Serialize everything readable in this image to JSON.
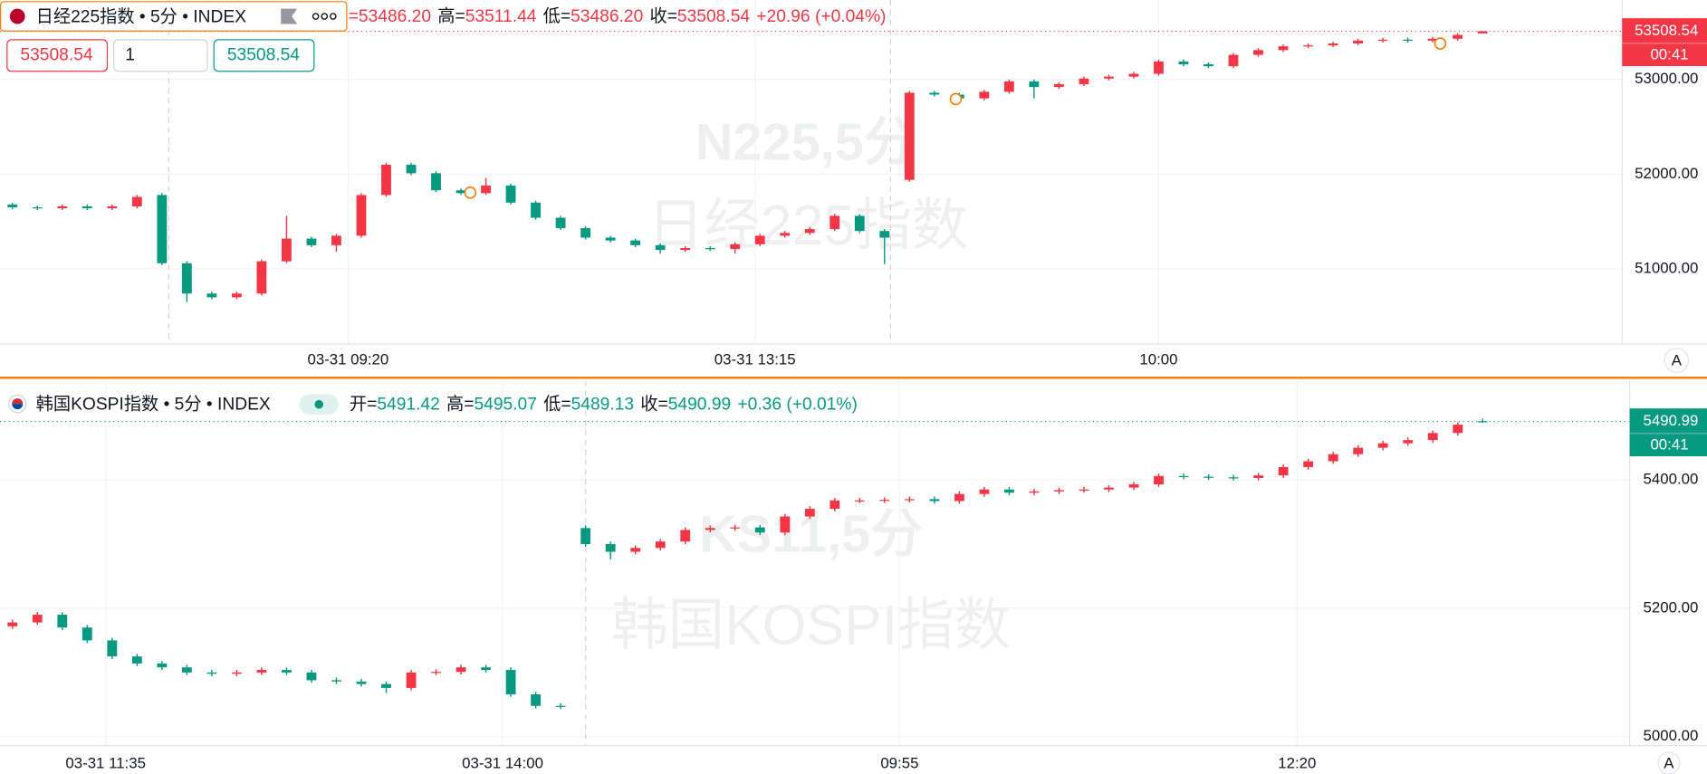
{
  "chart_data": [
    {
      "type": "candlestick",
      "symbol": "日经225指数 • 5分 • INDEX",
      "legend_items": [
        {
          "value": "=53486.20"
        },
        {
          "label": "高=",
          "value": "53511.44"
        },
        {
          "label": "低=",
          "value": "53486.20"
        },
        {
          "label": "收=",
          "value": "53508.54"
        }
      ],
      "change": "+20.96 (+0.04%)",
      "legend_color": "#f23645",
      "inputs": [
        "53508.54",
        "1",
        "53508.54"
      ],
      "watermark": [
        "N225,5分",
        "日经225指数"
      ],
      "last_price_label": "53508.54",
      "countdown": "00:41",
      "up_color": "#f23645",
      "down_color": "#089981",
      "xlim": [
        -0.5,
        64.6
      ],
      "xticks": [
        {
          "value": 13.47,
          "label": "03-31 09:20"
        },
        {
          "value": 29.8,
          "label": "03-31 13:15"
        },
        {
          "value": 46,
          "label": "10:00"
        }
      ],
      "ylim": [
        50207,
        53839
      ],
      "yticks": [
        {
          "value": 51000,
          "label": "51000.00"
        },
        {
          "value": 52000,
          "label": "52000.00"
        },
        {
          "value": 53000,
          "label": "53000.00"
        }
      ],
      "open": [
        51680,
        51650,
        51640,
        51660,
        51640,
        51660,
        51780,
        51060,
        50740,
        50700,
        50740,
        51080,
        51320,
        51250,
        51350,
        51780,
        52100,
        52010,
        51830,
        51800,
        51880,
        51700,
        51540,
        51430,
        51330,
        51300,
        51250,
        51200,
        51220,
        51210,
        51260,
        51350,
        51380,
        51420,
        51560,
        51400,
        51940,
        52860,
        52840,
        52800,
        52870,
        52980,
        52920,
        52950,
        53010,
        53030,
        53060,
        53190,
        53160,
        53140,
        53260,
        53310,
        53350,
        53360,
        53380,
        53410,
        53420,
        53410,
        53430,
        53486.2
      ],
      "high": [
        51700,
        51670,
        51680,
        51680,
        51680,
        51780,
        51800,
        51080,
        50760,
        50760,
        51100,
        51560,
        51340,
        51370,
        51800,
        52120,
        52120,
        52030,
        51850,
        51960,
        51900,
        51720,
        51560,
        51450,
        51350,
        51320,
        51270,
        51240,
        51240,
        51280,
        51370,
        51400,
        51440,
        51580,
        51580,
        51420,
        52880,
        52880,
        52860,
        52890,
        53000,
        53000,
        52970,
        53030,
        53050,
        53080,
        53210,
        53210,
        53180,
        53280,
        53330,
        53370,
        53380,
        53400,
        53430,
        53440,
        53440,
        53450,
        53490,
        53511.44
      ],
      "low": [
        51630,
        51620,
        51620,
        51620,
        51620,
        51640,
        51040,
        50650,
        50680,
        50680,
        50720,
        51060,
        51230,
        51180,
        51330,
        51760,
        51990,
        51810,
        51780,
        51780,
        51680,
        51520,
        51410,
        51310,
        51280,
        51230,
        51160,
        51180,
        51190,
        51160,
        51240,
        51330,
        51360,
        51400,
        51380,
        51050,
        51920,
        52820,
        52780,
        52780,
        52850,
        52800,
        52900,
        52930,
        52990,
        53010,
        53040,
        53140,
        53120,
        53120,
        53240,
        53290,
        53330,
        53340,
        53360,
        53390,
        53390,
        53390,
        53410,
        53486.2
      ],
      "close": [
        51650,
        51640,
        51660,
        51640,
        51660,
        51760,
        51060,
        50740,
        50700,
        50740,
        51080,
        51320,
        51250,
        51350,
        51780,
        52100,
        52010,
        51830,
        51800,
        51880,
        51700,
        51540,
        51430,
        51330,
        51300,
        51250,
        51200,
        51220,
        51210,
        51260,
        51350,
        51380,
        51420,
        51560,
        51400,
        51330,
        52860,
        52840,
        52800,
        52870,
        52980,
        52920,
        52950,
        53010,
        53030,
        53060,
        53190,
        53160,
        53140,
        53260,
        53310,
        53350,
        53360,
        53380,
        53410,
        53420,
        53410,
        53430,
        53470,
        53508.54
      ]
    },
    {
      "type": "candlestick",
      "symbol": "韩国KOSPI指数 • 5分 • INDEX",
      "legend_items": [
        {
          "label": "开=",
          "value": "5491.42"
        },
        {
          "label": "高=",
          "value": "5495.07"
        },
        {
          "label": "低=",
          "value": "5489.13"
        },
        {
          "label": "收=",
          "value": "5490.99"
        }
      ],
      "change": "+0.36 (+0.01%)",
      "legend_color": "#089981",
      "watermark": [
        "KS11,5分",
        "韩国KOSPI指数"
      ],
      "last_price_label": "5490.99",
      "countdown": "00:41",
      "up_color": "#f23645",
      "down_color": "#089981",
      "xlim": [
        -0.5,
        64.9
      ],
      "xticks": [
        {
          "value": 3.74,
          "label": "03-31 11:35"
        },
        {
          "value": 19.67,
          "label": "03-31 14:00"
        },
        {
          "value": 35.6,
          "label": "09:55"
        },
        {
          "value": 51.55,
          "label": "12:20"
        }
      ],
      "ylim": [
        4986,
        5554
      ],
      "yticks": [
        {
          "value": 5000,
          "label": "5000.00"
        },
        {
          "value": 5200,
          "label": "5200.00"
        },
        {
          "value": 5400,
          "label": "5400.00"
        }
      ],
      "open": [
        5172,
        5178,
        5190,
        5170,
        5150,
        5125,
        5114,
        5108,
        5100,
        5098,
        5100,
        5104,
        5100,
        5088,
        5086,
        5082,
        5076,
        5100,
        5101,
        5108,
        5104,
        5066,
        5048,
        5325,
        5300,
        5288,
        5294,
        5304,
        5322,
        5325,
        5326,
        5318,
        5343,
        5355,
        5368,
        5368,
        5369,
        5370,
        5367,
        5378,
        5385,
        5380,
        5382,
        5384,
        5385,
        5388,
        5393,
        5406,
        5405,
        5404,
        5403,
        5407,
        5420,
        5429,
        5440,
        5450,
        5457,
        5462,
        5473,
        5491.42
      ],
      "high": [
        5182,
        5194,
        5194,
        5174,
        5154,
        5129,
        5118,
        5112,
        5104,
        5104,
        5108,
        5108,
        5104,
        5092,
        5090,
        5086,
        5104,
        5105,
        5112,
        5112,
        5108,
        5070,
        5052,
        5329,
        5304,
        5298,
        5308,
        5326,
        5329,
        5330,
        5330,
        5347,
        5359,
        5372,
        5372,
        5373,
        5374,
        5374,
        5382,
        5389,
        5389,
        5386,
        5388,
        5389,
        5392,
        5397,
        5410,
        5410,
        5409,
        5408,
        5411,
        5424,
        5433,
        5444,
        5454,
        5461,
        5466,
        5477,
        5490,
        5495.07
      ],
      "low": [
        5168,
        5174,
        5166,
        5146,
        5121,
        5110,
        5104,
        5096,
        5094,
        5094,
        5096,
        5096,
        5084,
        5082,
        5078,
        5068,
        5072,
        5096,
        5097,
        5100,
        5062,
        5044,
        5043,
        5296,
        5276,
        5284,
        5290,
        5300,
        5318,
        5321,
        5314,
        5314,
        5339,
        5351,
        5364,
        5364,
        5365,
        5363,
        5363,
        5374,
        5376,
        5376,
        5378,
        5380,
        5381,
        5384,
        5389,
        5401,
        5400,
        5399,
        5399,
        5403,
        5416,
        5425,
        5436,
        5446,
        5453,
        5458,
        5469,
        5489.13
      ],
      "close": [
        5178,
        5190,
        5170,
        5150,
        5125,
        5114,
        5108,
        5100,
        5098,
        5100,
        5104,
        5100,
        5088,
        5086,
        5082,
        5076,
        5100,
        5101,
        5108,
        5104,
        5066,
        5048,
        5047,
        5300,
        5288,
        5294,
        5304,
        5322,
        5325,
        5326,
        5318,
        5343,
        5355,
        5368,
        5368,
        5369,
        5370,
        5367,
        5378,
        5385,
        5380,
        5382,
        5384,
        5385,
        5388,
        5393,
        5406,
        5405,
        5404,
        5403,
        5407,
        5420,
        5429,
        5440,
        5450,
        5457,
        5462,
        5473,
        5486,
        5490.99
      ]
    }
  ]
}
